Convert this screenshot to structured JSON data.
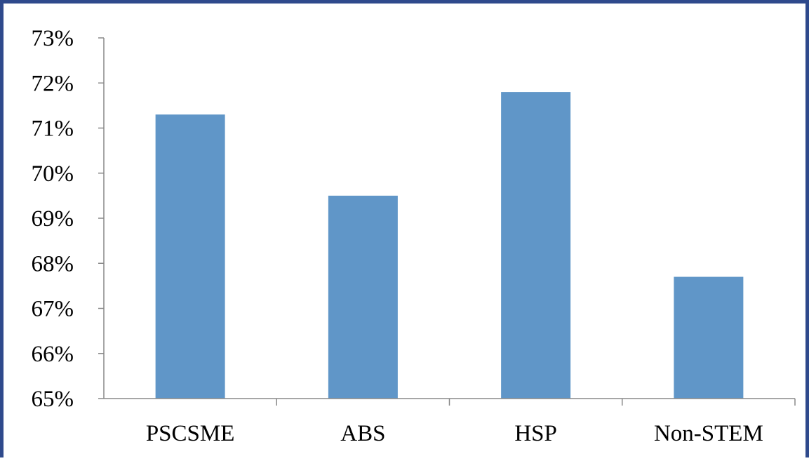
{
  "chart_data": {
    "type": "bar",
    "categories": [
      "PSCSME",
      "ABS",
      "HSP",
      "Non-STEM"
    ],
    "values": [
      71.3,
      69.5,
      71.8,
      67.7
    ],
    "ylim": [
      65,
      73
    ],
    "yticks": [
      65,
      66,
      67,
      68,
      69,
      70,
      71,
      72,
      73
    ],
    "ytick_labels": [
      "65%",
      "66%",
      "67%",
      "68%",
      "69%",
      "70%",
      "71%",
      "72%",
      "73%"
    ],
    "title": "",
    "xlabel": "",
    "ylabel": "",
    "grid": false,
    "legend": "none",
    "bar_color": "#6096c8",
    "axis_color": "#888888",
    "frame_color": "#2f4a8c"
  }
}
